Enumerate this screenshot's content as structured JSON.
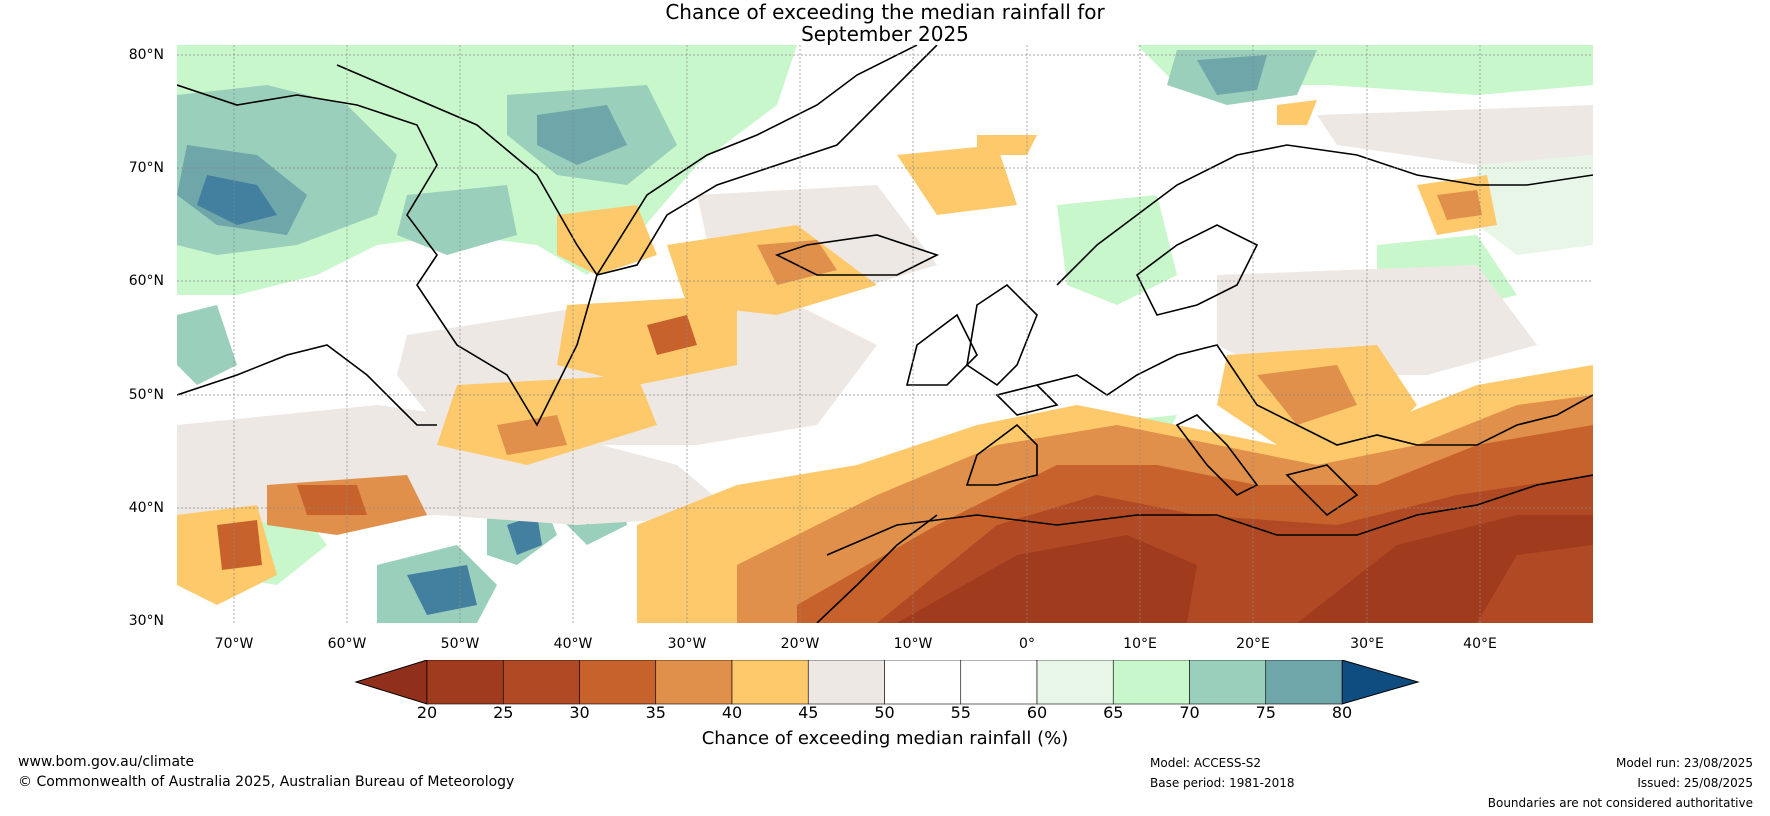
{
  "title": {
    "line1": "Chance of exceeding the median rainfall for",
    "line2": "September 2025"
  },
  "map": {
    "lat_labels": [
      "80°N",
      "70°N",
      "60°N",
      "50°N",
      "40°N",
      "30°N"
    ],
    "lon_labels": [
      "70°W",
      "60°W",
      "50°W",
      "40°W",
      "30°W",
      "20°W",
      "10°W",
      "0°",
      "10°E",
      "20°E",
      "30°E",
      "40°E"
    ]
  },
  "colorbar": {
    "labels": [
      "20",
      "25",
      "30",
      "35",
      "40",
      "45",
      "50",
      "55",
      "60",
      "65",
      "70",
      "75",
      "80"
    ],
    "colors": [
      "#a13b1e",
      "#b14a24",
      "#c8622c",
      "#e0904a",
      "#fdc96b",
      "#eee8e4",
      "#ffffff",
      "#ffffff",
      "#e8f6e8",
      "#c8f7cc",
      "#99cfbb",
      "#6fa6aa",
      "#437f9f"
    ],
    "under_color": "#8f2f1c",
    "over_color": "#0f4c80",
    "title": "Chance of exceeding median rainfall (%)"
  },
  "footer": {
    "url": "www.bom.gov.au/climate",
    "copyright": "© Commonwealth of Australia 2025, Australian Bureau of Meteorology",
    "model": "Model: ACCESS-S2",
    "base_period": "Base period: 1981-2018",
    "model_run": "Model run: 23/08/2025",
    "issued": "Issued: 25/08/2025",
    "boundaries": "Boundaries are not considered authoritative"
  }
}
